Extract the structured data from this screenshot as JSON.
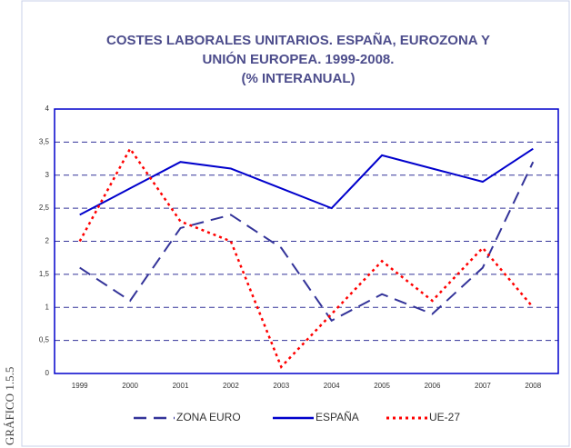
{
  "chart_data": {
    "type": "line",
    "title": [
      "COSTES LABORALES UNITARIOS. ESPAÑA, EUROZONA Y",
      "UNIÓN EUROPEA. 1999-2008."
    ],
    "subtitle": "(% INTERANUAL)",
    "side_label": "GRÁFICO 1.5.5",
    "categories": [
      "1999",
      "2000",
      "2001",
      "2002",
      "2003",
      "2004",
      "2005",
      "2006",
      "2007",
      "2008"
    ],
    "series": [
      {
        "name": "ZONA EURO",
        "color": "#333399",
        "dash": "dashed",
        "values": [
          1.6,
          1.1,
          2.2,
          2.4,
          1.9,
          0.8,
          1.2,
          0.9,
          1.6,
          3.2
        ]
      },
      {
        "name": "ESPAÑA",
        "color": "#0000cc",
        "dash": "solid",
        "values": [
          2.4,
          2.8,
          3.2,
          3.1,
          2.8,
          2.5,
          3.3,
          3.1,
          2.9,
          3.4
        ]
      },
      {
        "name": "UE-27",
        "color": "#ff0000",
        "dash": "dotted",
        "values": [
          2.0,
          3.4,
          2.3,
          2.0,
          0.1,
          0.9,
          1.7,
          1.1,
          1.9,
          1.0
        ]
      }
    ],
    "ylim": [
      0,
      4
    ],
    "yticks": [
      0,
      {
        "value": 0.5,
        "label": "0,5"
      },
      1,
      {
        "value": 1.5,
        "label": "1,5"
      },
      2,
      {
        "value": 2.5,
        "label": "2,5"
      },
      3,
      {
        "value": 3.5,
        "label": "3,5"
      },
      4
    ],
    "grid": true
  }
}
